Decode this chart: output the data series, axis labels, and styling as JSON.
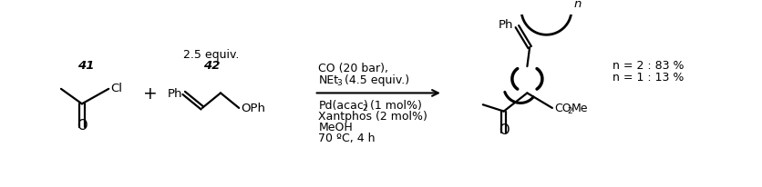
{
  "bg_color": "#ffffff",
  "fig_width": 8.36,
  "fig_height": 2.07,
  "dpi": 100,
  "condition_line1": "CO (20 bar),",
  "condition_line2_pre": "NEt",
  "condition_line2_sub": "3",
  "condition_line2_post": " (4.5 equiv.)",
  "condition_line3_pre": "Pd(acac)",
  "condition_line3_sub": "2",
  "condition_line3_post": " (1 mol%)",
  "condition_line4": "Xantphos (2 mol%)",
  "condition_line5": "MeOH",
  "condition_line6": "70 ºC, 4 h",
  "label_41": "41",
  "label_42": "42",
  "label_42_equiv": "2.5 equiv.",
  "plus_sign": "+",
  "result_n1": "n = 1 : 13 %",
  "result_n2": "n = 2 : 83 %",
  "label_n": "n",
  "label_Ph_42": "Ph",
  "label_Cl": "Cl",
  "label_OPh": "OPh",
  "label_CO2Me_1": "CO",
  "label_CO2Me_2": "2",
  "label_CO2Me_3": "Me",
  "label_O": "O",
  "label_Ph_prod": "Ph"
}
